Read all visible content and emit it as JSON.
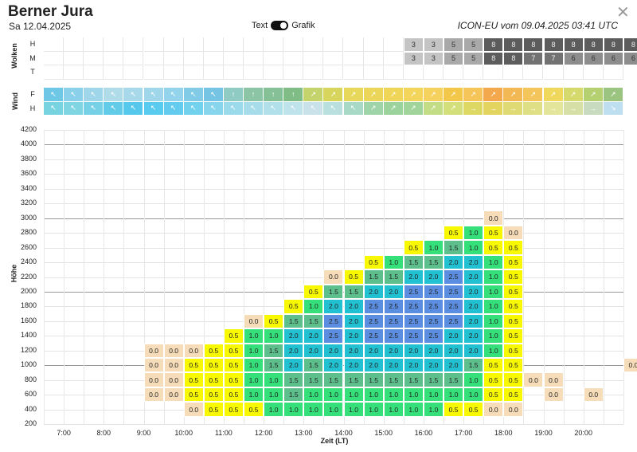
{
  "header": {
    "title": "Berner Jura",
    "date": "Sa 12.04.2025",
    "toggle_left": "Text",
    "toggle_right": "Grafik",
    "model": "ICON-EU vom 09.04.2025 03:41 UTC",
    "close_icon": "close-icon"
  },
  "clouds": {
    "section_label": "Wolken",
    "rows": [
      "H",
      "M",
      "T"
    ],
    "high": [
      "3",
      "3",
      "5",
      "5",
      "8",
      "8",
      "8",
      "8",
      "8",
      "8",
      "8",
      "8"
    ],
    "mid": [
      "3",
      "3",
      "5",
      "5",
      "8",
      "8",
      "7",
      "7",
      "6",
      "6",
      "6",
      "6"
    ],
    "start_column": 18
  },
  "wind": {
    "section_label": "Wind",
    "rows": [
      "F",
      "H"
    ],
    "icon": "wind-arrow-icon"
  },
  "chart": {
    "y_axis_label": "Höhe",
    "x_axis_label": "Zeit (LT)",
    "y_ticks": [
      "4200",
      "4000",
      "3800",
      "3600",
      "3400",
      "3200",
      "3000",
      "2800",
      "2600",
      "2400",
      "2200",
      "2000",
      "1800",
      "1600",
      "1400",
      "1200",
      "1000",
      "800",
      "600",
      "400",
      "200"
    ],
    "x_ticks": [
      "7:00",
      "8:00",
      "9:00",
      "10:00",
      "11:00",
      "12:00",
      "13:00",
      "14:00",
      "15:00",
      "16:00",
      "17:00",
      "18:00",
      "19:00",
      "20:00"
    ]
  },
  "chart_data": {
    "type": "heatmap",
    "xlabel": "Zeit (LT)",
    "ylabel": "Höhe",
    "y_range": [
      200,
      4200
    ],
    "time_columns_start": "6:30",
    "time_step_minutes": 30,
    "columns": [
      {
        "col": 5,
        "cells": [
          [
            1200,
            "0.0"
          ],
          [
            1000,
            "0.0"
          ],
          [
            800,
            "0.0"
          ],
          [
            600,
            "0.0"
          ]
        ]
      },
      {
        "col": 6,
        "cells": [
          [
            1200,
            "0.0"
          ],
          [
            1000,
            "0.0"
          ],
          [
            800,
            "0.0"
          ],
          [
            600,
            "0.0"
          ]
        ]
      },
      {
        "col": 7,
        "cells": [
          [
            1200,
            "0.0"
          ],
          [
            1000,
            "0.5"
          ],
          [
            800,
            "0.5"
          ],
          [
            600,
            "0.5"
          ],
          [
            400,
            "0.0"
          ]
        ]
      },
      {
        "col": 8,
        "cells": [
          [
            1200,
            "0.5"
          ],
          [
            1000,
            "0.5"
          ],
          [
            800,
            "0.5"
          ],
          [
            600,
            "0.5"
          ],
          [
            400,
            "0.5"
          ]
        ]
      },
      {
        "col": 9,
        "cells": [
          [
            1400,
            "0.5"
          ],
          [
            1200,
            "0.5"
          ],
          [
            1000,
            "0.5"
          ],
          [
            800,
            "0.5"
          ],
          [
            600,
            "0.5"
          ],
          [
            400,
            "0.5"
          ]
        ]
      },
      {
        "col": 10,
        "cells": [
          [
            1600,
            "0.0"
          ],
          [
            1400,
            "1.0"
          ],
          [
            1200,
            "1.0"
          ],
          [
            1000,
            "1.0"
          ],
          [
            800,
            "1.0"
          ],
          [
            600,
            "1.0"
          ],
          [
            400,
            "0.5"
          ]
        ]
      },
      {
        "col": 11,
        "cells": [
          [
            1600,
            "0.5"
          ],
          [
            1400,
            "1.0"
          ],
          [
            1200,
            "1.5"
          ],
          [
            1000,
            "1.5"
          ],
          [
            800,
            "1.0"
          ],
          [
            600,
            "1.0"
          ],
          [
            400,
            "1.0"
          ]
        ]
      },
      {
        "col": 12,
        "cells": [
          [
            1800,
            "0.5"
          ],
          [
            1600,
            "1.5"
          ],
          [
            1400,
            "2.0"
          ],
          [
            1200,
            "2.0"
          ],
          [
            1000,
            "2.0"
          ],
          [
            800,
            "1.5"
          ],
          [
            600,
            "1.5"
          ],
          [
            400,
            "1.0"
          ]
        ]
      },
      {
        "col": 13,
        "cells": [
          [
            2000,
            "0.5"
          ],
          [
            1800,
            "1.0"
          ],
          [
            1600,
            "1.5"
          ],
          [
            1400,
            "2.0"
          ],
          [
            1200,
            "2.0"
          ],
          [
            1000,
            "1.5"
          ],
          [
            800,
            "1.5"
          ],
          [
            600,
            "1.0"
          ],
          [
            400,
            "1.0"
          ]
        ]
      },
      {
        "col": 14,
        "cells": [
          [
            2200,
            "0.0"
          ],
          [
            2000,
            "1.5"
          ],
          [
            1800,
            "2.0"
          ],
          [
            1600,
            "2.5"
          ],
          [
            1400,
            "2.5"
          ],
          [
            1200,
            "2.0"
          ],
          [
            1000,
            "2.0"
          ],
          [
            800,
            "1.5"
          ],
          [
            600,
            "1.0"
          ],
          [
            400,
            "1.0"
          ]
        ]
      },
      {
        "col": 15,
        "cells": [
          [
            2200,
            "0.5"
          ],
          [
            2000,
            "1.5"
          ],
          [
            1800,
            "2.0"
          ],
          [
            1600,
            "2.0"
          ],
          [
            1400,
            "2.0"
          ],
          [
            1200,
            "2.0"
          ],
          [
            1000,
            "2.0"
          ],
          [
            800,
            "1.5"
          ],
          [
            600,
            "1.0"
          ],
          [
            400,
            "1.0"
          ]
        ]
      },
      {
        "col": 16,
        "cells": [
          [
            2400,
            "0.5"
          ],
          [
            2200,
            "1.5"
          ],
          [
            2000,
            "2.0"
          ],
          [
            1800,
            "2.5"
          ],
          [
            1600,
            "2.5"
          ],
          [
            1400,
            "2.5"
          ],
          [
            1200,
            "2.0"
          ],
          [
            1000,
            "2.0"
          ],
          [
            800,
            "1.5"
          ],
          [
            600,
            "1.0"
          ],
          [
            400,
            "1.0"
          ]
        ]
      },
      {
        "col": 17,
        "cells": [
          [
            2400,
            "1.0"
          ],
          [
            2200,
            "1.5"
          ],
          [
            2000,
            "2.0"
          ],
          [
            1800,
            "2.5"
          ],
          [
            1600,
            "2.5"
          ],
          [
            1400,
            "2.5"
          ],
          [
            1200,
            "2.0"
          ],
          [
            1000,
            "2.0"
          ],
          [
            800,
            "1.5"
          ],
          [
            600,
            "1.0"
          ],
          [
            400,
            "1.0"
          ]
        ]
      },
      {
        "col": 18,
        "cells": [
          [
            2600,
            "0.5"
          ],
          [
            2400,
            "1.5"
          ],
          [
            2200,
            "2.0"
          ],
          [
            2000,
            "2.5"
          ],
          [
            1800,
            "2.5"
          ],
          [
            1600,
            "2.5"
          ],
          [
            1400,
            "2.5"
          ],
          [
            1200,
            "2.0"
          ],
          [
            1000,
            "2.0"
          ],
          [
            800,
            "1.5"
          ],
          [
            600,
            "1.0"
          ],
          [
            400,
            "1.0"
          ]
        ]
      },
      {
        "col": 19,
        "cells": [
          [
            2600,
            "1.0"
          ],
          [
            2400,
            "1.5"
          ],
          [
            2200,
            "2.0"
          ],
          [
            2000,
            "2.5"
          ],
          [
            1800,
            "2.5"
          ],
          [
            1600,
            "2.5"
          ],
          [
            1400,
            "2.5"
          ],
          [
            1200,
            "2.0"
          ],
          [
            1000,
            "2.0"
          ],
          [
            800,
            "1.5"
          ],
          [
            600,
            "1.0"
          ],
          [
            400,
            "1.0"
          ]
        ]
      },
      {
        "col": 20,
        "cells": [
          [
            2800,
            "0.5"
          ],
          [
            2600,
            "1.5"
          ],
          [
            2400,
            "2.0"
          ],
          [
            2200,
            "2.5"
          ],
          [
            2000,
            "2.5"
          ],
          [
            1800,
            "2.5"
          ],
          [
            1600,
            "2.5"
          ],
          [
            1400,
            "2.0"
          ],
          [
            1200,
            "2.0"
          ],
          [
            1000,
            "2.0"
          ],
          [
            800,
            "1.5"
          ],
          [
            600,
            "1.0"
          ],
          [
            400,
            "0.5"
          ]
        ]
      },
      {
        "col": 21,
        "cells": [
          [
            2800,
            "1.0"
          ],
          [
            2600,
            "1.0"
          ],
          [
            2400,
            "2.0"
          ],
          [
            2200,
            "2.0"
          ],
          [
            2000,
            "2.0"
          ],
          [
            1800,
            "2.0"
          ],
          [
            1600,
            "2.0"
          ],
          [
            1400,
            "2.0"
          ],
          [
            1200,
            "2.0"
          ],
          [
            1000,
            "1.5"
          ],
          [
            800,
            "1.0"
          ],
          [
            600,
            "1.0"
          ],
          [
            400,
            "0.5"
          ]
        ]
      },
      {
        "col": 22,
        "cells": [
          [
            3000,
            "0.0"
          ],
          [
            2800,
            "0.5"
          ],
          [
            2600,
            "0.5"
          ],
          [
            2400,
            "1.0"
          ],
          [
            2200,
            "1.0"
          ],
          [
            2000,
            "1.0"
          ],
          [
            1800,
            "1.0"
          ],
          [
            1600,
            "1.0"
          ],
          [
            1400,
            "1.0"
          ],
          [
            1200,
            "1.0"
          ],
          [
            1000,
            "0.5"
          ],
          [
            800,
            "0.5"
          ],
          [
            600,
            "0.5"
          ],
          [
            400,
            "0.0"
          ]
        ]
      },
      {
        "col": 23,
        "cells": [
          [
            2800,
            "0.0"
          ],
          [
            2600,
            "0.5"
          ],
          [
            2400,
            "0.5"
          ],
          [
            2200,
            "0.5"
          ],
          [
            2000,
            "0.5"
          ],
          [
            1800,
            "0.5"
          ],
          [
            1600,
            "0.5"
          ],
          [
            1400,
            "0.5"
          ],
          [
            1200,
            "0.5"
          ],
          [
            1000,
            "0.5"
          ],
          [
            800,
            "0.5"
          ],
          [
            600,
            "0.5"
          ],
          [
            400,
            "0.0"
          ]
        ]
      },
      {
        "col": 24,
        "cells": [
          [
            800,
            "0.0"
          ]
        ]
      },
      {
        "col": 25,
        "cells": [
          [
            800,
            "0.0"
          ],
          [
            600,
            "0.0"
          ]
        ]
      },
      {
        "col": 27,
        "cells": [
          [
            600,
            "0.0"
          ]
        ]
      },
      {
        "col": 29,
        "cells": [
          [
            1000,
            "0.0"
          ]
        ]
      }
    ],
    "color_scale": {
      "0.0": "#f6dcb8",
      "0.5": "#f8f800",
      "1.0": "#35e07a",
      "1.5": "#5cbf8c",
      "2.0": "#22c1d2",
      "2.5": "#5b8ee0"
    }
  },
  "colors": {
    "cloud_3": "#c4c4c4",
    "cloud_5": "#a9a9a9",
    "cloud_6": "#8d8d8d",
    "cloud_7": "#727272",
    "cloud_8": "#5c5c5c"
  }
}
